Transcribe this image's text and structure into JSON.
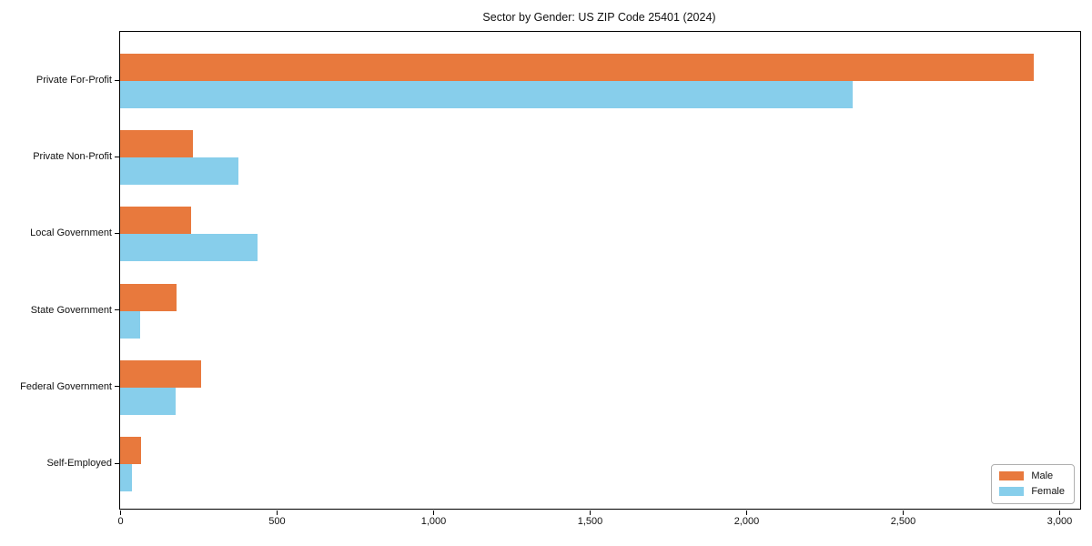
{
  "chart_data": {
    "type": "bar",
    "orientation": "horizontal",
    "title": "Sector by Gender: US ZIP Code 25401 (2024)",
    "categories": [
      "Private For-Profit",
      "Private Non-Profit",
      "Local Government",
      "State Government",
      "Federal Government",
      "Self-Employed"
    ],
    "series": [
      {
        "name": "Male",
        "color": "#e8793d",
        "values": [
          2920,
          233,
          227,
          180,
          259,
          67
        ]
      },
      {
        "name": "Female",
        "color": "#87ceeb",
        "values": [
          2340,
          378,
          439,
          64,
          177,
          38
        ]
      }
    ],
    "xlabel": "",
    "ylabel": "",
    "x_ticks": [
      0,
      500,
      1000,
      1500,
      2000,
      2500,
      3000
    ],
    "x_tick_labels": [
      "0",
      "500",
      "1,000",
      "1,500",
      "2,000",
      "2,500",
      "3,000"
    ],
    "xlim": [
      0,
      3067
    ],
    "grid": false,
    "legend_position": "lower right",
    "legend_entries": [
      "Male",
      "Female"
    ]
  },
  "colors": {
    "axis": "#000000",
    "background": "#ffffff",
    "male": "#e8793d",
    "female": "#87ceeb",
    "legend_border": "#b0b0b0"
  }
}
